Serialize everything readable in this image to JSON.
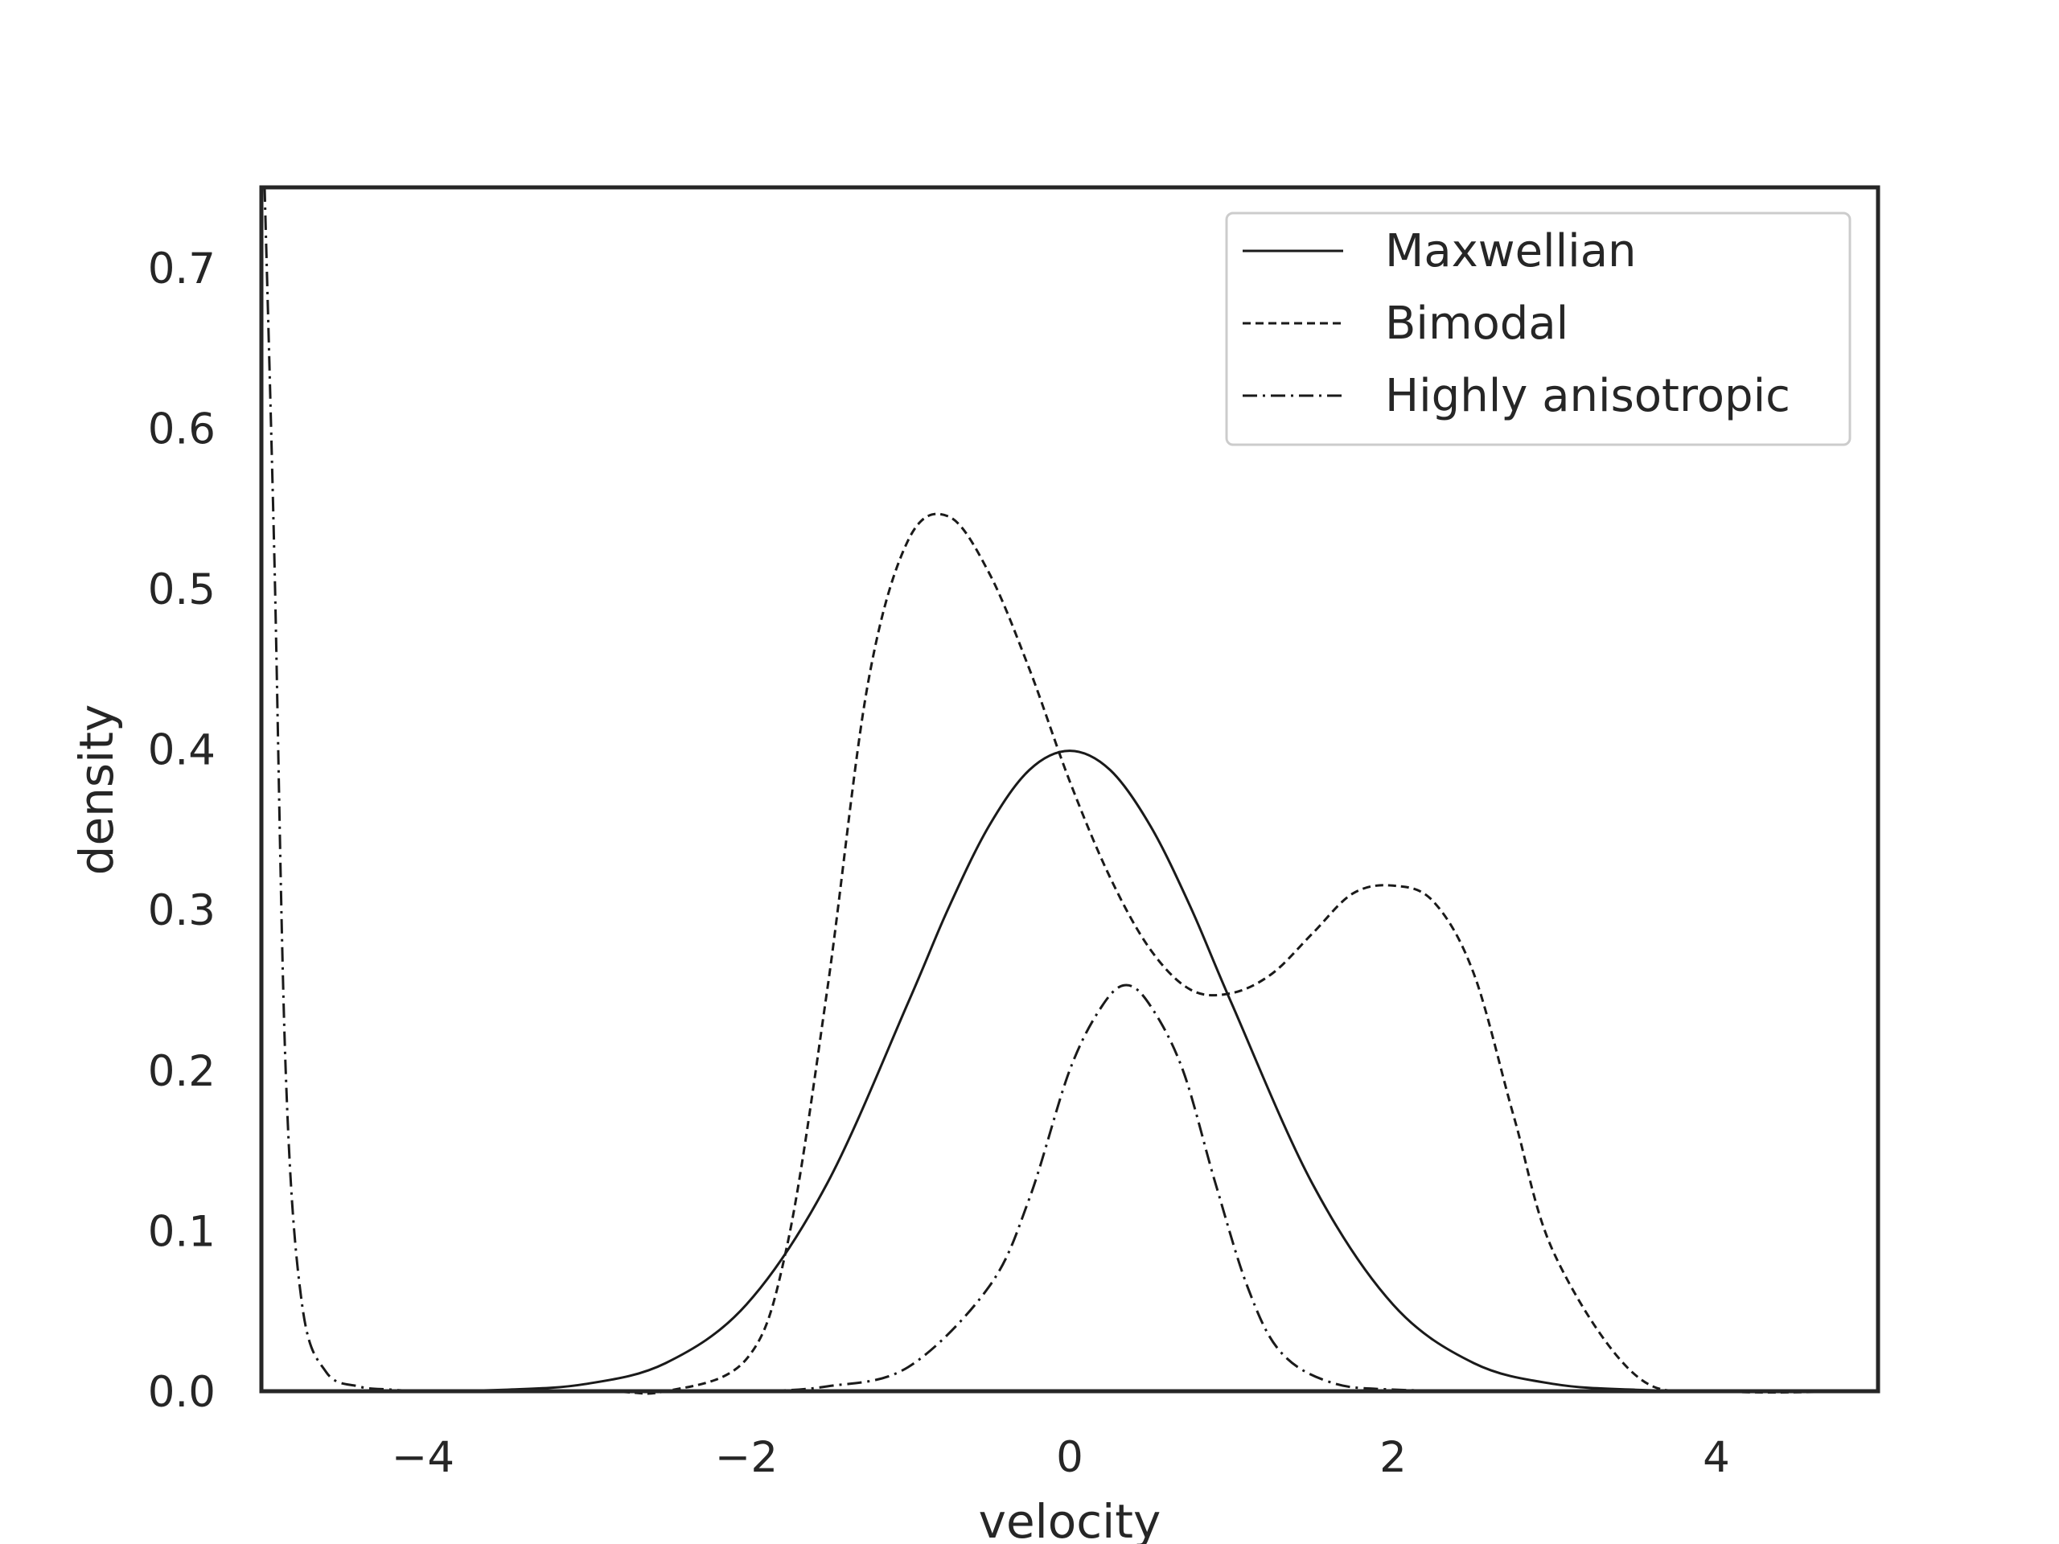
{
  "chart_data": {
    "type": "line",
    "title": "",
    "xlabel": "velocity",
    "ylabel": "density",
    "xlim": [
      -5,
      5
    ],
    "ylim": [
      0,
      0.75
    ],
    "xticks": [
      -4,
      -2,
      0,
      2,
      4
    ],
    "xtick_labels": [
      "−4",
      "−2",
      "0",
      "2",
      "4"
    ],
    "yticks": [
      0.0,
      0.1,
      0.2,
      0.3,
      0.4,
      0.5,
      0.6,
      0.7
    ],
    "ytick_labels": [
      "0.0",
      "0.1",
      "0.2",
      "0.3",
      "0.4",
      "0.5",
      "0.6",
      "0.7"
    ],
    "grid": false,
    "legend_position": "top-right",
    "colors": {
      "line": "#1a1a1a",
      "frame": "#262626",
      "legend_border": "#cccccc",
      "text": "#262626"
    },
    "series": [
      {
        "name": "Maxwellian",
        "linestyle": "solid",
        "x": [
          -5.0,
          -4.0,
          -3.5,
          -3.0,
          -2.5,
          -2.0,
          -1.5,
          -1.0,
          -0.75,
          -0.5,
          -0.25,
          0.0,
          0.25,
          0.5,
          0.75,
          1.0,
          1.5,
          2.0,
          2.5,
          3.0,
          3.5,
          4.0,
          5.0
        ],
        "y": [
          0.0,
          0.0001,
          0.0009,
          0.0044,
          0.0175,
          0.054,
          0.1295,
          0.242,
          0.301,
          0.352,
          0.387,
          0.399,
          0.387,
          0.352,
          0.301,
          0.242,
          0.1295,
          0.054,
          0.0175,
          0.0044,
          0.0009,
          0.0001,
          0.0
        ]
      },
      {
        "name": "Bimodal",
        "linestyle": "dashed",
        "x": [
          -5.0,
          -3.0,
          -2.5,
          -2.0,
          -1.75,
          -1.5,
          -1.25,
          -1.0,
          -0.75,
          -0.5,
          -0.25,
          0.0,
          0.25,
          0.5,
          0.75,
          1.0,
          1.25,
          1.5,
          1.75,
          2.0,
          2.25,
          2.5,
          2.75,
          3.0,
          3.5,
          4.0,
          5.0
        ],
        "y": [
          0.0,
          0.0,
          0.0,
          0.02,
          0.09,
          0.25,
          0.44,
          0.53,
          0.545,
          0.51,
          0.45,
          0.38,
          0.32,
          0.275,
          0.25,
          0.248,
          0.26,
          0.285,
          0.31,
          0.315,
          0.305,
          0.26,
          0.17,
          0.085,
          0.01,
          0.0,
          0.0
        ]
      },
      {
        "name": "Highly anisotropic",
        "linestyle": "dashdot",
        "x": [
          -4.98,
          -4.92,
          -4.85,
          -4.75,
          -4.6,
          -4.4,
          -4.2,
          -4.0,
          -3.5,
          -3.0,
          -2.0,
          -1.5,
          -1.0,
          -0.5,
          -0.25,
          0.0,
          0.2,
          0.35,
          0.5,
          0.7,
          0.9,
          1.1,
          1.3,
          1.6,
          2.0,
          3.0,
          5.0
        ],
        "y": [
          0.75,
          0.52,
          0.2,
          0.055,
          0.012,
          0.003,
          0.001,
          0.0,
          0.0,
          0.0,
          0.0,
          0.003,
          0.015,
          0.065,
          0.12,
          0.2,
          0.24,
          0.253,
          0.24,
          0.2,
          0.13,
          0.065,
          0.025,
          0.006,
          0.001,
          0.0,
          0.0
        ]
      }
    ]
  }
}
